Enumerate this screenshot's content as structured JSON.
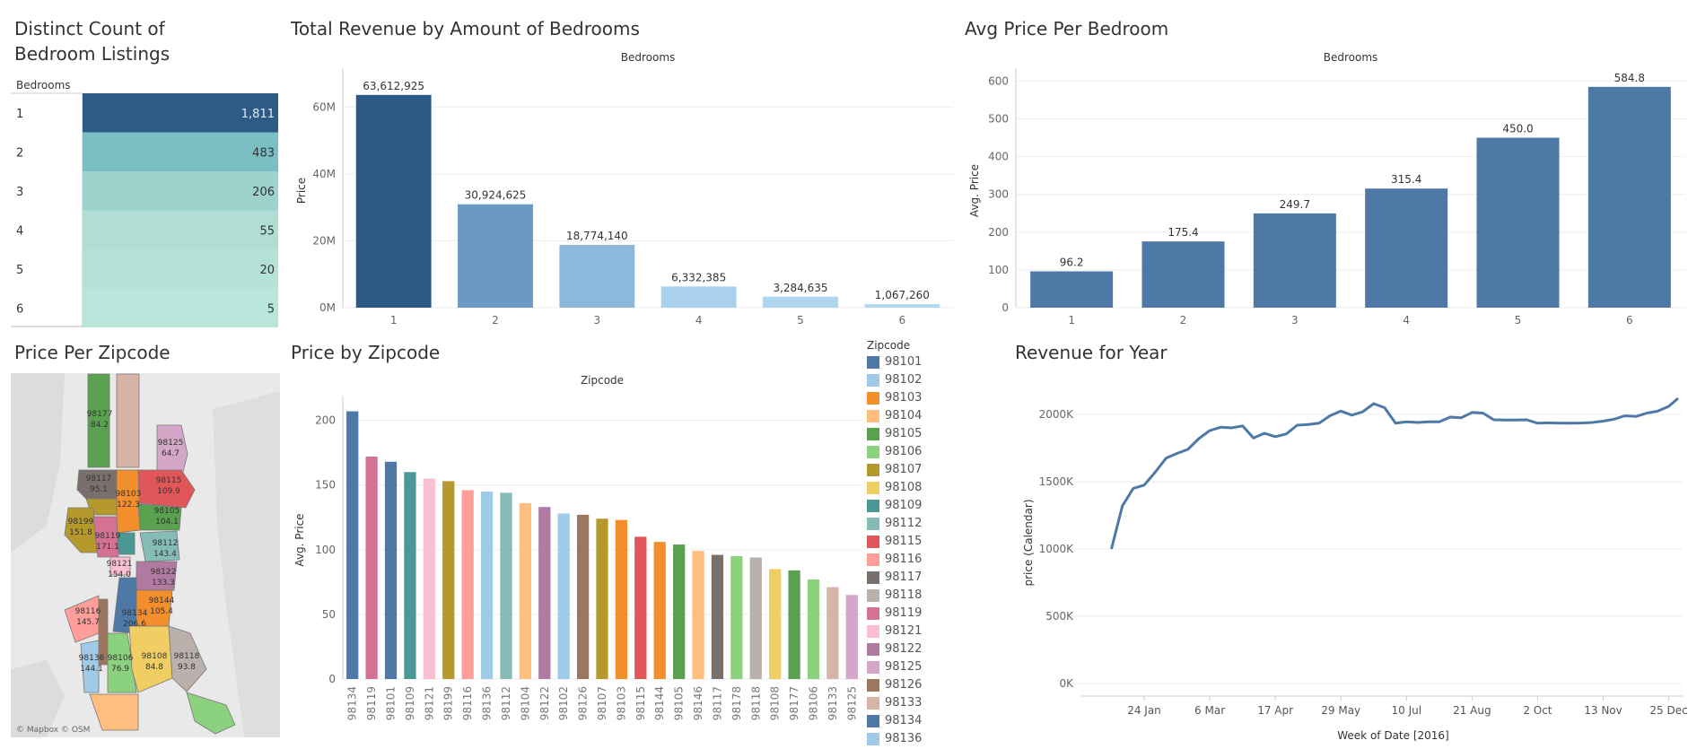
{
  "titles": {
    "distinct": "Distinct Count of Bedroom Listings",
    "revenue": "Total Revenue by Amount of Bedrooms",
    "avg": "Avg Price Per Bedroom",
    "map": "Price Per Zipcode",
    "zip": "Price by Zipcode",
    "year": "Revenue for Year"
  },
  "map_credit": "© Mapbox © OSM",
  "legend": {
    "title": "Zipcode",
    "items": [
      {
        "label": "98101",
        "color": "#4e79a7"
      },
      {
        "label": "98102",
        "color": "#a0cbe8"
      },
      {
        "label": "98103",
        "color": "#f28e2b"
      },
      {
        "label": "98104",
        "color": "#ffbe7d"
      },
      {
        "label": "98105",
        "color": "#59a14f"
      },
      {
        "label": "98106",
        "color": "#8cd17d"
      },
      {
        "label": "98107",
        "color": "#b6992d"
      },
      {
        "label": "98108",
        "color": "#f1ce63"
      },
      {
        "label": "98109",
        "color": "#499894"
      },
      {
        "label": "98112",
        "color": "#86bcb6"
      },
      {
        "label": "98115",
        "color": "#e15759"
      },
      {
        "label": "98116",
        "color": "#ff9d9a"
      },
      {
        "label": "98117",
        "color": "#79706e"
      },
      {
        "label": "98118",
        "color": "#bab0ac"
      },
      {
        "label": "98119",
        "color": "#d37295"
      },
      {
        "label": "98121",
        "color": "#fabfd2"
      },
      {
        "label": "98122",
        "color": "#b07aa1"
      },
      {
        "label": "98125",
        "color": "#d4a6c8"
      },
      {
        "label": "98126",
        "color": "#9d7660"
      },
      {
        "label": "98133",
        "color": "#d7b5a6"
      },
      {
        "label": "98134",
        "color": "#4e79a7"
      },
      {
        "label": "98136",
        "color": "#a0cbe8"
      }
    ]
  },
  "map": {
    "labels": [
      {
        "zip": "98177",
        "val": "84.2"
      },
      {
        "zip": "98125",
        "val": "64.7"
      },
      {
        "zip": "98117",
        "val": "95.1"
      },
      {
        "zip": "98115",
        "val": "109.9"
      },
      {
        "zip": "98103",
        "val": "122.3"
      },
      {
        "zip": "98105",
        "val": "104.1"
      },
      {
        "zip": "98199",
        "val": "151.8"
      },
      {
        "zip": "98119",
        "val": "171.1"
      },
      {
        "zip": "98112",
        "val": "143.4"
      },
      {
        "zip": "98121",
        "val": "154.0"
      },
      {
        "zip": "98122",
        "val": "133.3"
      },
      {
        "zip": "98144",
        "val": "105.4"
      },
      {
        "zip": "98116",
        "val": "145.7"
      },
      {
        "zip": "98134",
        "val": "206.6"
      },
      {
        "zip": "98136",
        "val": "144.1"
      },
      {
        "zip": "98106",
        "val": "76.9"
      },
      {
        "zip": "98108",
        "val": "84.8"
      },
      {
        "zip": "98118",
        "val": "93.8"
      }
    ]
  },
  "chart_data": [
    {
      "type": "table",
      "title": "Distinct Count of Bedroom Listings",
      "column_header": "Bedrooms",
      "categories": [
        "1",
        "2",
        "3",
        "4",
        "5",
        "6"
      ],
      "values": [
        1811,
        483,
        206,
        55,
        20,
        5
      ],
      "value_labels": [
        "1,811",
        "483",
        "206",
        "55",
        "20",
        "5"
      ],
      "colors": [
        "#2d5a86",
        "#79bfc4",
        "#9ed2cd",
        "#b0ded5",
        "#b5e2d8",
        "#b9e6da"
      ]
    },
    {
      "type": "bar",
      "title": "Total Revenue by Amount of Bedrooms",
      "header": "Bedrooms",
      "ylabel": "Price",
      "categories": [
        "1",
        "2",
        "3",
        "4",
        "5",
        "6"
      ],
      "values": [
        63612925,
        30924625,
        18774140,
        6332385,
        3284635,
        1067260
      ],
      "value_labels": [
        "63,612,925",
        "30,924,625",
        "18,774,140",
        "6,332,385",
        "3,284,635",
        "1,067,260"
      ],
      "colors": [
        "#2c5985",
        "#6a9ac4",
        "#8cb8dc",
        "#a9d0ec",
        "#afd6ef",
        "#b3d9f0"
      ],
      "yticks": [
        "0M",
        "20M",
        "40M",
        "60M"
      ],
      "ylim": [
        0,
        70000000
      ]
    },
    {
      "type": "bar",
      "title": "Avg Price Per Bedroom",
      "header": "Bedrooms",
      "ylabel": "Avg. Price",
      "categories": [
        "1",
        "2",
        "3",
        "4",
        "5",
        "6"
      ],
      "values": [
        96.2,
        175.4,
        249.7,
        315.4,
        450.0,
        584.8
      ],
      "value_labels": [
        "96.2",
        "175.4",
        "249.7",
        "315.4",
        "450.0",
        "584.8"
      ],
      "color": "#4e79a7",
      "yticks": [
        "0",
        "100",
        "200",
        "300",
        "400",
        "500",
        "600"
      ],
      "ylim": [
        0,
        620
      ]
    },
    {
      "type": "bar",
      "title": "Price by Zipcode",
      "header": "Zipcode",
      "ylabel": "Avg. Price",
      "categories": [
        "98134",
        "98119",
        "98101",
        "98109",
        "98121",
        "98199",
        "98116",
        "98136",
        "98112",
        "98104",
        "98122",
        "98102",
        "98126",
        "98107",
        "98103",
        "98115",
        "98144",
        "98105",
        "98146",
        "98117",
        "98178",
        "98118",
        "98108",
        "98177",
        "98106",
        "98133",
        "98125"
      ],
      "values": [
        207,
        172,
        168,
        160,
        155,
        153,
        146,
        145,
        144,
        136,
        133,
        128,
        127,
        124,
        123,
        110,
        106,
        104,
        99,
        96,
        95,
        94,
        85,
        84,
        77,
        71,
        65
      ],
      "colors": [
        "#4e79a7",
        "#d37295",
        "#4e79a7",
        "#499894",
        "#fabfd2",
        "#b6992d",
        "#ff9d9a",
        "#a0cbe8",
        "#86bcb6",
        "#ffbe7d",
        "#b07aa1",
        "#a0cbe8",
        "#9d7660",
        "#b6992d",
        "#f28e2b",
        "#e15759",
        "#f28e2b",
        "#59a14f",
        "#ffbe7d",
        "#79706e",
        "#8cd17d",
        "#bab0ac",
        "#f1ce63",
        "#59a14f",
        "#8cd17d",
        "#d7b5a6",
        "#d4a6c8"
      ],
      "yticks": [
        "0",
        "50",
        "100",
        "150",
        "200"
      ],
      "ylim": [
        0,
        215
      ]
    },
    {
      "type": "line",
      "title": "Revenue for Year",
      "xlabel": "Week of Date [2016]",
      "ylabel": "price (Calendar)",
      "x_ticks": [
        "24 Jan",
        "6 Mar",
        "17 Apr",
        "29 May",
        "10 Jul",
        "21 Aug",
        "2 Oct",
        "13 Nov",
        "25 Dec"
      ],
      "yticks": [
        "0K",
        "500K",
        "1000K",
        "1500K",
        "2000K"
      ],
      "ylim": [
        0,
        2200000
      ],
      "color": "#4e79a7",
      "x": [
        "2016-01-03",
        "2016-01-10",
        "2016-01-17",
        "2016-01-24",
        "2016-01-31",
        "2016-02-07",
        "2016-02-14",
        "2016-02-21",
        "2016-02-28",
        "2016-03-06",
        "2016-03-13",
        "2016-03-20",
        "2016-03-27",
        "2016-04-03",
        "2016-04-10",
        "2016-04-17",
        "2016-04-24",
        "2016-05-01",
        "2016-05-08",
        "2016-05-15",
        "2016-05-22",
        "2016-05-29",
        "2016-06-05",
        "2016-06-12",
        "2016-06-19",
        "2016-06-26",
        "2016-07-03",
        "2016-07-10",
        "2016-07-17",
        "2016-07-24",
        "2016-07-31",
        "2016-08-07",
        "2016-08-14",
        "2016-08-21",
        "2016-08-28",
        "2016-09-04",
        "2016-09-11",
        "2016-09-18",
        "2016-09-25",
        "2016-10-02",
        "2016-10-09",
        "2016-10-16",
        "2016-10-23",
        "2016-10-30",
        "2016-11-06",
        "2016-11-13",
        "2016-11-20",
        "2016-11-27",
        "2016-12-04",
        "2016-12-11",
        "2016-12-18",
        "2016-12-25",
        "2016-12-31"
      ],
      "values": [
        1000000,
        1320000,
        1450000,
        1475000,
        1570000,
        1675000,
        1710000,
        1740000,
        1820000,
        1880000,
        1905000,
        1900000,
        1915000,
        1825000,
        1860000,
        1835000,
        1855000,
        1920000,
        1925000,
        1935000,
        1990000,
        2025000,
        1995000,
        2020000,
        2080000,
        2050000,
        1935000,
        1945000,
        1940000,
        1945000,
        1945000,
        1980000,
        1975000,
        2015000,
        2010000,
        1960000,
        1958000,
        1958000,
        1960000,
        1935000,
        1937000,
        1935000,
        1935000,
        1936000,
        1940000,
        1950000,
        1965000,
        1990000,
        1985000,
        2010000,
        2025000,
        2060000,
        2120000
      ]
    }
  ]
}
